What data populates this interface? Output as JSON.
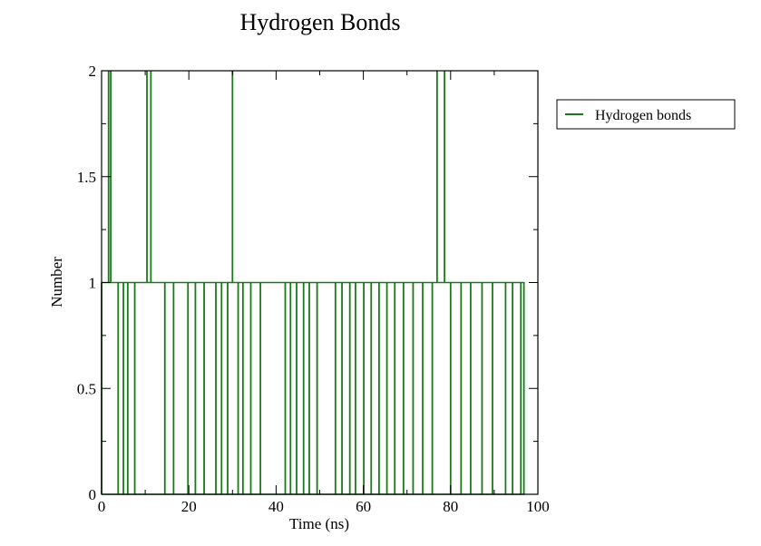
{
  "chart_data": {
    "type": "line",
    "title": "Hydrogen Bonds",
    "xlabel": "Time (ns)",
    "ylabel": "Number",
    "xlim": [
      0,
      100
    ],
    "ylim": [
      0,
      2
    ],
    "x_ticks": [
      "0",
      "20",
      "40",
      "60",
      "80",
      "100"
    ],
    "y_ticks": [
      "0",
      "0.5",
      "1",
      "1.5",
      "2"
    ],
    "grid": false,
    "legend_position": "right",
    "series": [
      {
        "name": "Hydrogen bonds",
        "color": "#1a7a1a",
        "segments": [
          [
            0,
            0,
            1
          ],
          [
            1.6,
            1,
            2
          ],
          [
            2.1,
            1,
            2
          ],
          [
            3.8,
            0,
            1
          ],
          [
            5.0,
            0,
            1
          ],
          [
            6.0,
            0,
            1
          ],
          [
            7.6,
            0,
            1
          ],
          [
            10.4,
            1,
            2
          ],
          [
            11.3,
            1,
            2
          ],
          [
            14.5,
            0,
            1
          ],
          [
            16.5,
            0,
            1
          ],
          [
            19.8,
            0,
            1
          ],
          [
            21.5,
            0,
            1
          ],
          [
            23.5,
            0,
            1
          ],
          [
            26.2,
            0,
            1
          ],
          [
            27.5,
            0,
            1
          ],
          [
            28.9,
            0,
            1
          ],
          [
            30.0,
            1,
            2
          ],
          [
            31.3,
            0,
            1
          ],
          [
            32.4,
            0,
            1
          ],
          [
            34.2,
            0,
            1
          ],
          [
            36.4,
            0,
            1
          ],
          [
            42.1,
            0,
            1
          ],
          [
            43.3,
            0,
            1
          ],
          [
            44.7,
            0,
            1
          ],
          [
            46.3,
            0,
            1
          ],
          [
            47.6,
            0,
            1
          ],
          [
            49.4,
            0,
            1
          ],
          [
            53.6,
            0,
            1
          ],
          [
            55.1,
            0,
            1
          ],
          [
            56.9,
            0,
            1
          ],
          [
            58.2,
            0,
            1
          ],
          [
            60.1,
            0,
            1
          ],
          [
            61.8,
            0,
            1
          ],
          [
            63.6,
            0,
            1
          ],
          [
            65.4,
            0,
            1
          ],
          [
            67.2,
            0,
            1
          ],
          [
            69.2,
            0,
            1
          ],
          [
            71.4,
            0,
            1
          ],
          [
            73.6,
            0,
            1
          ],
          [
            75.8,
            0,
            1
          ],
          [
            76.9,
            1,
            2
          ],
          [
            78.6,
            1,
            2
          ],
          [
            80.0,
            0,
            1
          ],
          [
            82.4,
            0,
            1
          ],
          [
            84.6,
            0,
            1
          ],
          [
            87.2,
            0,
            1
          ],
          [
            89.6,
            0,
            1
          ],
          [
            92.6,
            0,
            1
          ],
          [
            94.2,
            0,
            1
          ],
          [
            96.1,
            0,
            1
          ],
          [
            96.8,
            0,
            1
          ]
        ]
      }
    ]
  }
}
